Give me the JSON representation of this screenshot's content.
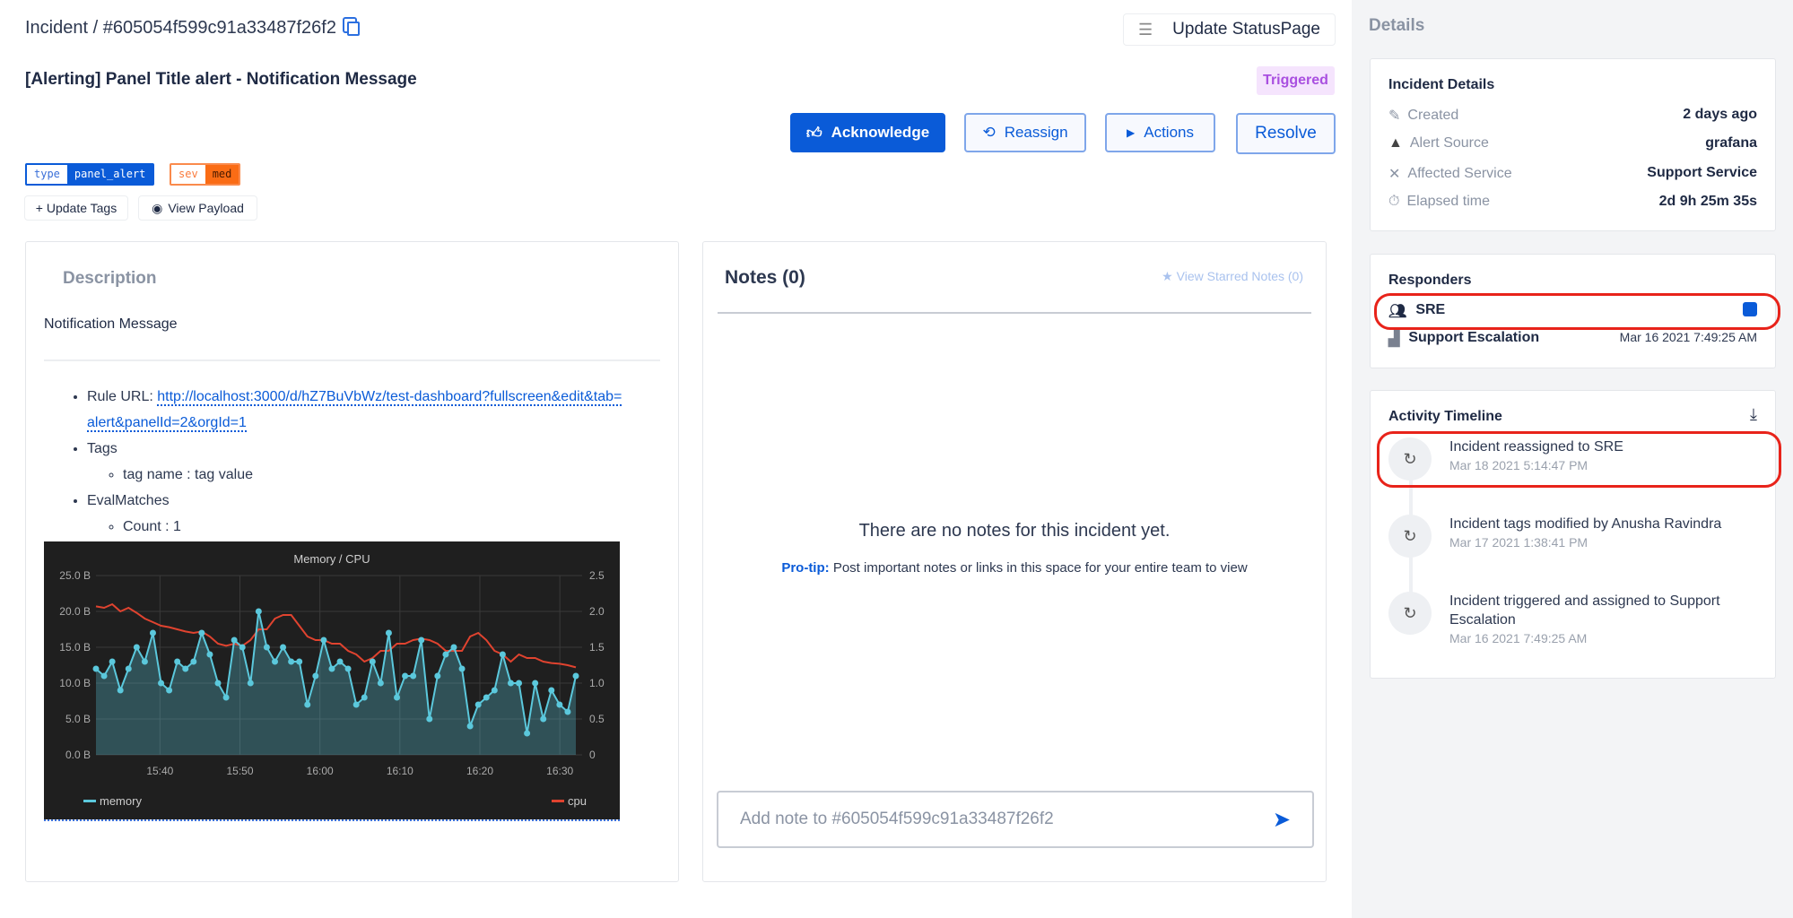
{
  "header": {
    "breadcrumb": "Incident / #605054f599c91a33487f26f2",
    "update_statuspage": "Update StatusPage",
    "title": "[Alerting] Panel Title alert - Notification Message",
    "status": "Triggered"
  },
  "actions": {
    "acknowledge": "Acknowledge",
    "reassign": "Reassign",
    "actions": "Actions",
    "resolve": "Resolve"
  },
  "tags": [
    {
      "key": "type",
      "value": "panel_alert"
    },
    {
      "key": "sev",
      "value": "med"
    }
  ],
  "tag_actions": {
    "update_tags": "+ Update Tags",
    "view_payload": "View Payload"
  },
  "description": {
    "heading": "Description",
    "message": "Notification Message",
    "rule_url_label": "Rule URL:",
    "rule_url": "http://localhost:3000/d/hZ7BuVbWz/test-dashboard?fullscreen&edit&tab=alert&panelId=2&orgId=1",
    "tags_label": "Tags",
    "tag_item": "tag name : tag value",
    "eval_label": "EvalMatches",
    "eval_item": "Count : 1"
  },
  "chart_data": {
    "type": "line",
    "title": "Memory / CPU",
    "x_ticks": [
      "15:40",
      "15:50",
      "16:00",
      "16:10",
      "16:20",
      "16:30"
    ],
    "y_left_ticks": [
      "0.0 B",
      "5.0 B",
      "10.0 B",
      "15.0 B",
      "20.0 B",
      "25.0 B"
    ],
    "y_left_range": [
      0,
      25
    ],
    "y_right_ticks": [
      "0",
      "0.5",
      "1.0",
      "1.5",
      "2.0",
      "2.5"
    ],
    "y_right_range": [
      0,
      2.5
    ],
    "x_range": [
      "15:32",
      "16:32"
    ],
    "grid": true,
    "legend": "bottom",
    "series": [
      {
        "name": "memory",
        "axis": "left",
        "color": "#5bc8dc",
        "values": [
          12,
          11,
          13,
          9,
          12,
          15,
          13,
          17,
          10,
          9,
          13,
          12,
          13,
          17,
          14,
          10,
          8,
          16,
          15,
          10,
          20,
          15,
          13,
          15,
          13,
          13,
          7,
          11,
          16,
          12,
          13,
          12,
          7,
          8,
          13,
          10,
          17,
          8,
          11,
          11,
          16,
          5,
          11,
          14,
          15,
          12,
          4,
          7,
          8,
          9,
          14,
          10,
          10,
          3,
          10,
          5,
          9,
          7,
          6,
          11
        ]
      },
      {
        "name": "cpu",
        "axis": "right",
        "color": "#e0432f",
        "values": [
          2.07,
          2.05,
          2.1,
          2.0,
          2.05,
          1.98,
          1.9,
          1.85,
          1.8,
          1.78,
          1.75,
          1.72,
          1.7,
          1.72,
          1.65,
          1.55,
          1.52,
          1.55,
          1.52,
          1.6,
          1.75,
          1.75,
          1.9,
          1.95,
          1.95,
          1.8,
          1.65,
          1.6,
          1.6,
          1.55,
          1.55,
          1.45,
          1.4,
          1.3,
          1.35,
          1.45,
          1.45,
          1.55,
          1.55,
          1.6,
          1.62,
          1.6,
          1.55,
          1.45,
          1.45,
          1.45,
          1.65,
          1.7,
          1.6,
          1.45,
          1.4,
          1.3,
          1.4,
          1.35,
          1.35,
          1.3,
          1.28,
          1.27,
          1.25,
          1.22
        ]
      }
    ]
  },
  "notes": {
    "heading": "Notes (0)",
    "starred": "View Starred Notes (0)",
    "empty": "There are no notes for this incident yet.",
    "protip_label": "Pro-tip:",
    "protip_text": "Post important notes or links in this space for your entire team to view",
    "input_placeholder": "Add note to #605054f599c91a33487f26f2"
  },
  "sidebar": {
    "heading": "Details",
    "incident_details": {
      "heading": "Incident Details",
      "rows": [
        {
          "label": "Created",
          "value": "2 days ago"
        },
        {
          "label": "Alert Source",
          "value": "grafana"
        },
        {
          "label": "Affected Service",
          "value": "Support Service"
        },
        {
          "label": "Elapsed time",
          "value": "2d 9h 25m 35s"
        }
      ]
    },
    "responders": {
      "heading": "Responders",
      "team": "SRE",
      "escalation": "Support Escalation",
      "escalation_date": "Mar 16 2021 7:49:25 AM"
    },
    "timeline": {
      "heading": "Activity Timeline",
      "items": [
        {
          "text": "Incident reassigned to SRE",
          "date": "Mar 18 2021 5:14:47 PM"
        },
        {
          "text": "Incident tags modified by Anusha Ravindra",
          "date": "Mar 17 2021 1:38:41 PM"
        },
        {
          "text": "Incident triggered and assigned to Support Escalation",
          "date": "Mar 16 2021 7:49:25 AM"
        }
      ]
    }
  },
  "colors": {
    "primary": "#0a5bd8",
    "triggered_bg": "#f5e4fd",
    "triggered_fg": "#a94fe0",
    "sev": "#fa6c15",
    "highlight": "#e8231a"
  }
}
